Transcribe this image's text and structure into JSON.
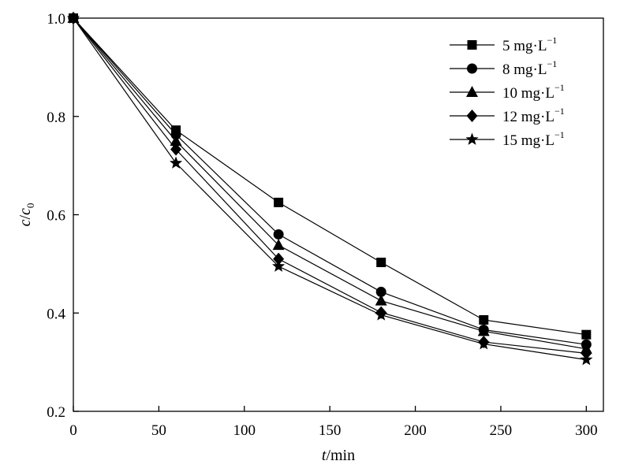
{
  "chart_data": {
    "type": "line",
    "xlabel": {
      "var": "t",
      "unit": "/min"
    },
    "ylabel": {
      "var": "c",
      "sep": "/",
      "var2": "c",
      "sub": "0"
    },
    "xlim": [
      0,
      310
    ],
    "ylim": [
      0.2,
      1.0
    ],
    "xticks": [
      0,
      50,
      100,
      150,
      200,
      250,
      300
    ],
    "yticks": [
      0.2,
      0.4,
      0.6,
      0.8,
      1.0
    ],
    "xtick_labels": [
      "0",
      "50",
      "100",
      "150",
      "200",
      "250",
      "300"
    ],
    "ytick_labels": [
      "0.2",
      "0.4",
      "0.6",
      "0.8",
      "1.0"
    ],
    "grid": false,
    "legend_position": "top-right",
    "x": [
      0,
      60,
      120,
      180,
      240,
      300
    ],
    "series": [
      {
        "name": "5 mg·L",
        "name_sup": "−1",
        "marker": "square",
        "values": [
          1.0,
          0.772,
          0.625,
          0.503,
          0.386,
          0.356
        ]
      },
      {
        "name": "8 mg·L",
        "name_sup": "−1",
        "marker": "circle",
        "values": [
          1.0,
          0.763,
          0.56,
          0.443,
          0.366,
          0.336
        ]
      },
      {
        "name": "10 mg·L",
        "name_sup": "−1",
        "marker": "triangle",
        "values": [
          1.0,
          0.75,
          0.538,
          0.425,
          0.363,
          0.327
        ]
      },
      {
        "name": "12 mg·L",
        "name_sup": "−1",
        "marker": "diamond",
        "values": [
          1.0,
          0.733,
          0.51,
          0.401,
          0.341,
          0.318
        ]
      },
      {
        "name": "15 mg·L",
        "name_sup": "−1",
        "marker": "star",
        "values": [
          1.0,
          0.705,
          0.495,
          0.396,
          0.337,
          0.305
        ]
      }
    ]
  }
}
